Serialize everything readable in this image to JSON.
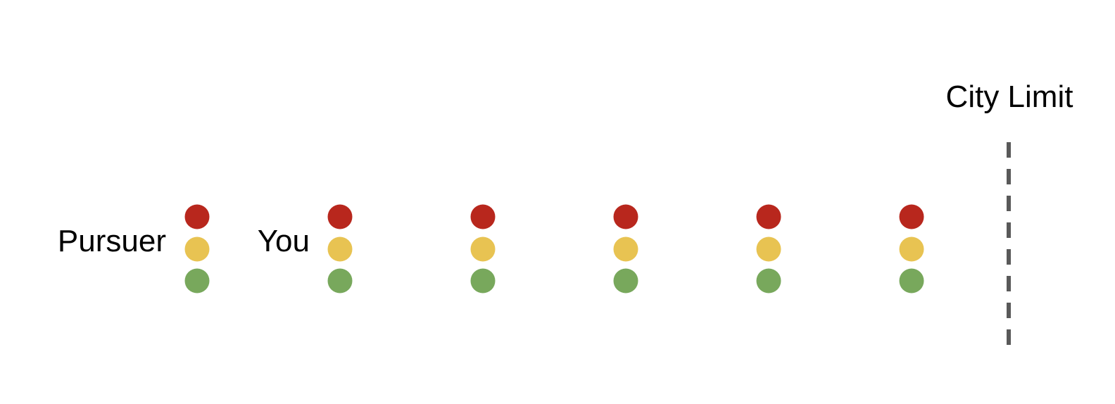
{
  "labels": {
    "pursuer": "Pursuer",
    "you": "You",
    "city_limit": "City Limit"
  },
  "traffic_lights": {
    "count": 6,
    "lamps": [
      "red",
      "yellow",
      "green"
    ]
  },
  "colors": {
    "red": "#b8271d",
    "yellow": "#e8c352",
    "green": "#78a85c",
    "limit_line": "#595959",
    "text": "#000000"
  }
}
